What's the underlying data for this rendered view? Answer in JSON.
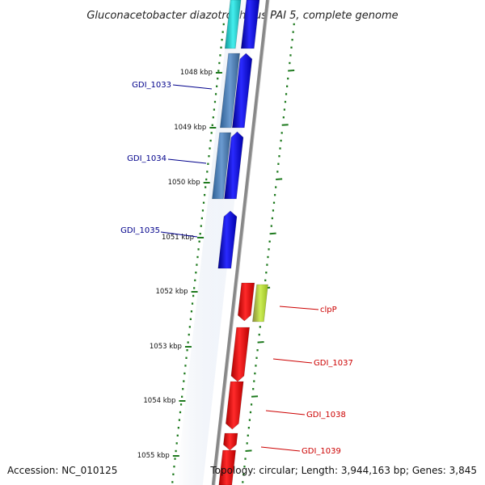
{
  "title": "Gluconacetobacter diazotrophicus PAI 5, complete genome",
  "footer": {
    "accession": "Accession: NC_010125",
    "topology": "Topology: circular; Length: 3,944,163 bp; Genes: 3,845"
  },
  "colors": {
    "forward_gene": "#0000ee",
    "forward_gene_alt": "#4a7fb8",
    "forward_gene_cyan": "#22cccc",
    "reverse_gene": "#ee0000",
    "reverse_gene_alt": "#aacc33",
    "backbone": "#888888",
    "ticks": "#1e7a1e",
    "label_forward": "#00008b",
    "label_reverse": "#cc0000"
  },
  "ruler": [
    {
      "label": "1048 kbp"
    },
    {
      "label": "1049 kbp"
    },
    {
      "label": "1050 kbp"
    },
    {
      "label": "1051 kbp"
    },
    {
      "label": "1052 kbp"
    },
    {
      "label": "1053 kbp"
    },
    {
      "label": "1054 kbp"
    },
    {
      "label": "1055 kbp"
    }
  ],
  "genes": [
    {
      "name": "GDI_1033",
      "strand": "forward"
    },
    {
      "name": "GDI_1034",
      "strand": "forward"
    },
    {
      "name": "GDI_1035",
      "strand": "forward"
    },
    {
      "name": "clpP",
      "strand": "reverse"
    },
    {
      "name": "GDI_1037",
      "strand": "reverse"
    },
    {
      "name": "GDI_1038",
      "strand": "reverse"
    },
    {
      "name": "GDI_1039",
      "strand": "reverse"
    }
  ]
}
